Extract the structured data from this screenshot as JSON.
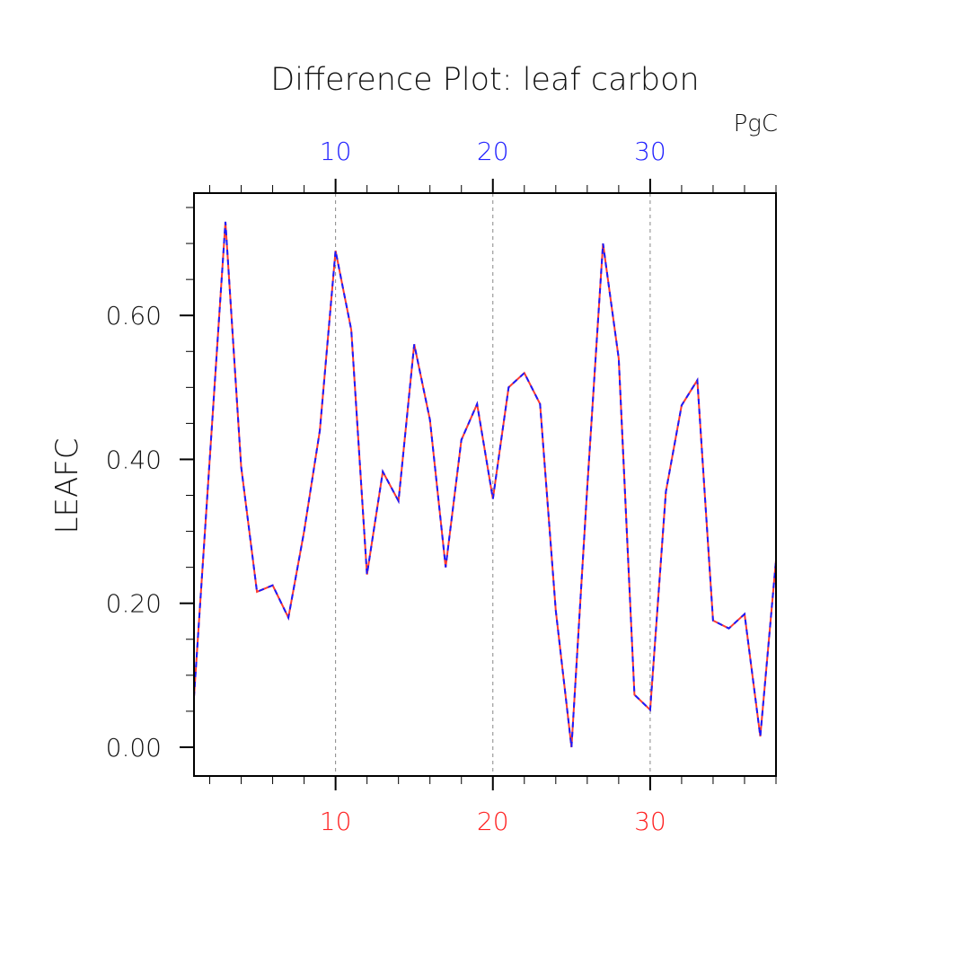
{
  "chart_data": {
    "type": "line",
    "title": "Difference Plot: leaf carbon",
    "units": "PgC",
    "ylabel": "LEAFC",
    "xlim": [
      1,
      38
    ],
    "ylim": [
      -0.04,
      0.77
    ],
    "y_ticks": [
      "0.00",
      "0.20",
      "0.40",
      "0.60"
    ],
    "y_tick_values": [
      0,
      0.2,
      0.4,
      0.6
    ],
    "x_ticks_bottom": [
      "10",
      "20",
      "30"
    ],
    "x_ticks_top": [
      "10",
      "20",
      "30"
    ],
    "x_tick_values": [
      10,
      20,
      30
    ],
    "grid": "vertical dashed at major x ticks",
    "colors": {
      "bottom_axis": "#ff2020",
      "top_axis": "#2020ff",
      "series_a": "#ff3b30",
      "series_b": "#1a1aff",
      "grid": "#888888"
    },
    "x": [
      1,
      2,
      3,
      4,
      5,
      6,
      7,
      8,
      9,
      10,
      11,
      12,
      13,
      14,
      15,
      16,
      17,
      18,
      19,
      20,
      21,
      22,
      23,
      24,
      25,
      26,
      27,
      28,
      29,
      30,
      31,
      32,
      33,
      34,
      35,
      36,
      37,
      38
    ],
    "series": [
      {
        "values": [
          0.07,
          0.4,
          0.73,
          0.39,
          0.216,
          0.225,
          0.18,
          0.3,
          0.44,
          0.69,
          0.58,
          0.24,
          0.383,
          0.342,
          0.56,
          0.455,
          0.25,
          0.427,
          0.477,
          0.345,
          0.5,
          0.52,
          0.477,
          0.19,
          0.0,
          0.36,
          0.7,
          0.54,
          0.073,
          0.052,
          0.355,
          0.475,
          0.51,
          0.176,
          0.165,
          0.185,
          0.015,
          0.26
        ]
      },
      {
        "values": [
          0.07,
          0.4,
          0.73,
          0.39,
          0.216,
          0.225,
          0.18,
          0.3,
          0.44,
          0.69,
          0.58,
          0.24,
          0.383,
          0.342,
          0.56,
          0.455,
          0.25,
          0.427,
          0.477,
          0.345,
          0.5,
          0.52,
          0.477,
          0.19,
          0.0,
          0.36,
          0.7,
          0.54,
          0.073,
          0.052,
          0.355,
          0.475,
          0.51,
          0.176,
          0.165,
          0.185,
          0.015,
          0.26
        ]
      }
    ]
  }
}
